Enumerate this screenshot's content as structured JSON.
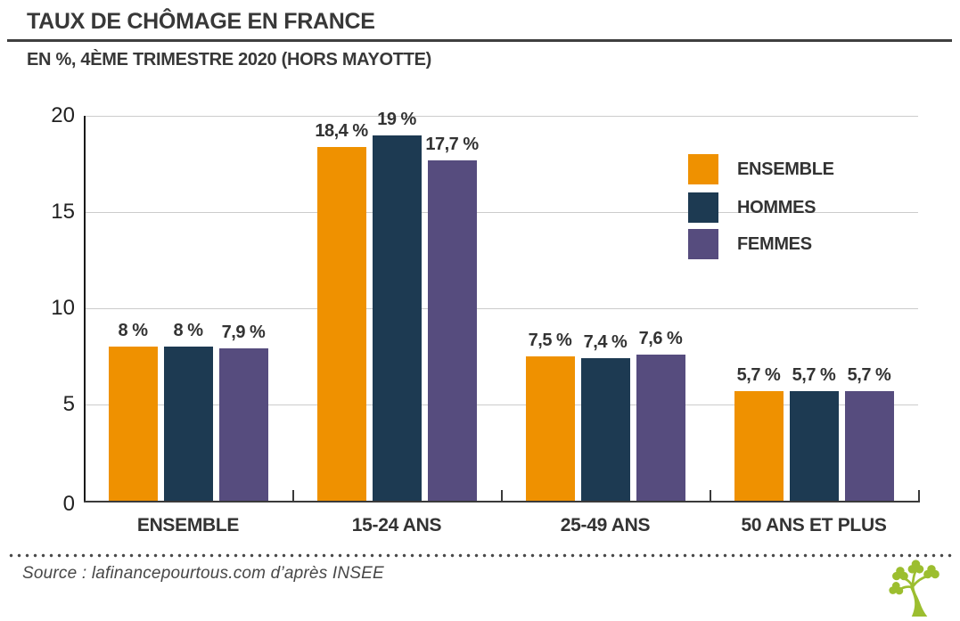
{
  "header": {
    "title": "TAUX DE CHÔMAGE EN FRANCE",
    "subtitle": "EN %, 4ÈME TRIMESTRE 2020 (HORS MAYOTTE)"
  },
  "source": {
    "text": "Source : lafinancepourtous.com d’après INSEE",
    "logo_icon": "tree-logo"
  },
  "colors": {
    "ensemble": "#EF9100",
    "hommes": "#1D3A52",
    "femmes": "#564C7E",
    "grid": "#CCCCCC",
    "axis": "#3A3A3A",
    "label_text": "#333333",
    "logo_green": "#9CBE2F"
  },
  "chart_data": {
    "type": "bar",
    "title": "TAUX DE CHÔMAGE EN FRANCE",
    "subtitle": "EN %, 4ÈME TRIMESTRE 2020 (HORS MAYOTTE)",
    "categories": [
      "ENSEMBLE",
      "15-24 ANS",
      "25-49 ANS",
      "50 ANS ET PLUS"
    ],
    "series": [
      {
        "name": "ENSEMBLE",
        "color": "#EF9100",
        "values": [
          8,
          18.4,
          7.5,
          5.7
        ],
        "labels": [
          "8 %",
          "18,4 %",
          "7,5 %",
          "5,7 %"
        ]
      },
      {
        "name": "HOMMES",
        "color": "#1D3A52",
        "values": [
          8,
          19,
          7.4,
          5.7
        ],
        "labels": [
          "8 %",
          "19 %",
          "7,4 %",
          "5,7 %"
        ]
      },
      {
        "name": "FEMMES",
        "color": "#564C7E",
        "values": [
          7.9,
          17.7,
          7.6,
          5.7
        ],
        "labels": [
          "7,9 %",
          "17,7 %",
          "7,6 %",
          "5,7 %"
        ]
      }
    ],
    "yticks": [
      0,
      5,
      10,
      15,
      20
    ],
    "ylim": [
      0,
      20
    ],
    "ylabel": "",
    "xlabel": "",
    "grid": "horizontal",
    "legend_position": "top-right"
  }
}
